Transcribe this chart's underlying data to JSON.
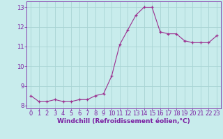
{
  "x": [
    0,
    1,
    2,
    3,
    4,
    5,
    6,
    7,
    8,
    9,
    10,
    11,
    12,
    13,
    14,
    15,
    16,
    17,
    18,
    19,
    20,
    21,
    22,
    23
  ],
  "y": [
    8.5,
    8.2,
    8.2,
    8.3,
    8.2,
    8.2,
    8.3,
    8.3,
    8.5,
    8.6,
    9.5,
    11.1,
    11.85,
    12.6,
    13.0,
    13.0,
    11.75,
    11.65,
    11.65,
    11.3,
    11.2,
    11.2,
    11.2,
    11.55
  ],
  "line_color": "#9b2d8e",
  "bg_color": "#c8ecec",
  "grid_color": "#a8d4d4",
  "xlabel": "Windchill (Refroidissement éolien,°C)",
  "xlim": [
    -0.5,
    23.5
  ],
  "ylim": [
    7.85,
    13.3
  ],
  "yticks": [
    8,
    9,
    10,
    11,
    12,
    13
  ],
  "xticks": [
    0,
    1,
    2,
    3,
    4,
    5,
    6,
    7,
    8,
    9,
    10,
    11,
    12,
    13,
    14,
    15,
    16,
    17,
    18,
    19,
    20,
    21,
    22,
    23
  ],
  "title_color": "#7b1fa2",
  "label_fontsize": 6.5,
  "tick_fontsize": 6.0
}
